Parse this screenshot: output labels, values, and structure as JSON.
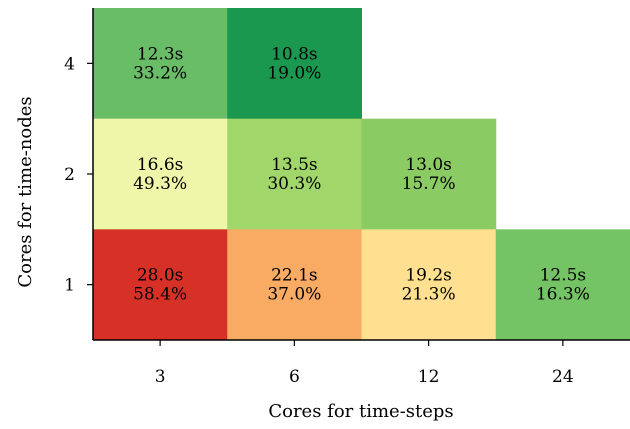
{
  "chart_data": {
    "type": "heatmap",
    "xlabel": "Cores for time-steps",
    "ylabel": "Cores for time-nodes",
    "x_categories": [
      "3",
      "6",
      "12",
      "24"
    ],
    "y_categories": [
      "1",
      "2",
      "4"
    ],
    "cells": [
      {
        "x": "3",
        "y": "4",
        "time": "12.3s",
        "percent": "33.2%",
        "color": "#6abd67"
      },
      {
        "x": "6",
        "y": "4",
        "time": "10.8s",
        "percent": "19.0%",
        "color": "#1a9850"
      },
      {
        "x": "3",
        "y": "2",
        "time": "16.6s",
        "percent": "49.3%",
        "color": "#eef7a9"
      },
      {
        "x": "6",
        "y": "2",
        "time": "13.5s",
        "percent": "30.3%",
        "color": "#a0d66a"
      },
      {
        "x": "12",
        "y": "2",
        "time": "13.0s",
        "percent": "15.7%",
        "color": "#8bcb63"
      },
      {
        "x": "3",
        "y": "1",
        "time": "28.0s",
        "percent": "58.4%",
        "color": "#d73027"
      },
      {
        "x": "6",
        "y": "1",
        "time": "22.1s",
        "percent": "37.0%",
        "color": "#f9ab63"
      },
      {
        "x": "12",
        "y": "1",
        "time": "19.2s",
        "percent": "21.3%",
        "color": "#fee090"
      },
      {
        "x": "24",
        "y": "1",
        "time": "12.5s",
        "percent": "16.3%",
        "color": "#74c364"
      }
    ]
  }
}
